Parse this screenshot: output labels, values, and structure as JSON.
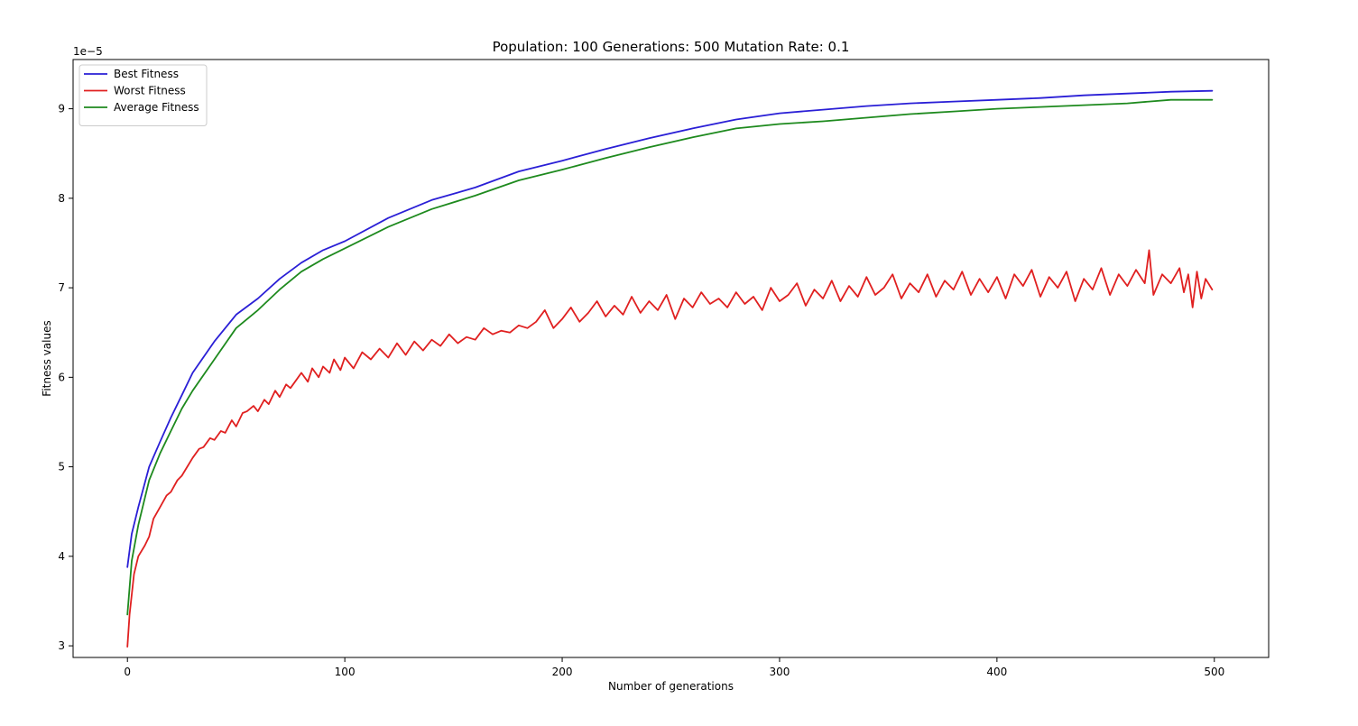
{
  "chart_data": {
    "type": "line",
    "title": "Population: 100 Generations: 500 Mutation Rate: 0.1",
    "xlabel": "Number of generations",
    "ylabel": "Fitness values",
    "y_offset_label": "1e−5",
    "xlim": [
      -25,
      525
    ],
    "ylim": [
      2.87,
      9.55
    ],
    "xticks": [
      0,
      100,
      200,
      300,
      400,
      500
    ],
    "xtick_labels": [
      "0",
      "100",
      "200",
      "300",
      "400",
      "500"
    ],
    "yticks": [
      3,
      4,
      5,
      6,
      7,
      8,
      9
    ],
    "ytick_labels": [
      "3",
      "4",
      "5",
      "6",
      "7",
      "8",
      "9"
    ],
    "grid": false,
    "legend_placement": "top-left",
    "series": [
      {
        "name": "Best Fitness",
        "color": "#2a1fd6",
        "x": [
          0,
          2,
          5,
          10,
          15,
          20,
          25,
          30,
          40,
          50,
          60,
          70,
          80,
          90,
          100,
          120,
          140,
          160,
          180,
          200,
          220,
          240,
          260,
          280,
          300,
          320,
          340,
          360,
          380,
          400,
          420,
          440,
          460,
          480,
          499
        ],
        "values": [
          3.88,
          4.25,
          4.55,
          5.0,
          5.28,
          5.55,
          5.8,
          6.05,
          6.4,
          6.7,
          6.88,
          7.1,
          7.28,
          7.42,
          7.52,
          7.78,
          7.98,
          8.12,
          8.3,
          8.42,
          8.55,
          8.67,
          8.78,
          8.88,
          8.95,
          8.99,
          9.03,
          9.06,
          9.08,
          9.1,
          9.12,
          9.15,
          9.17,
          9.19,
          9.2
        ]
      },
      {
        "name": "Worst Fitness",
        "color": "#e02020",
        "x": [
          0,
          1,
          3,
          5,
          8,
          10,
          12,
          15,
          18,
          20,
          23,
          25,
          28,
          30,
          33,
          35,
          38,
          40,
          43,
          45,
          48,
          50,
          53,
          55,
          58,
          60,
          63,
          65,
          68,
          70,
          73,
          75,
          78,
          80,
          83,
          85,
          88,
          90,
          93,
          95,
          98,
          100,
          104,
          108,
          112,
          116,
          120,
          124,
          128,
          132,
          136,
          140,
          144,
          148,
          152,
          156,
          160,
          164,
          168,
          172,
          176,
          180,
          184,
          188,
          192,
          196,
          200,
          204,
          208,
          212,
          216,
          220,
          224,
          228,
          232,
          236,
          240,
          244,
          248,
          252,
          256,
          260,
          264,
          268,
          272,
          276,
          280,
          284,
          288,
          292,
          296,
          300,
          304,
          308,
          312,
          316,
          320,
          324,
          328,
          332,
          336,
          340,
          344,
          348,
          352,
          356,
          360,
          364,
          368,
          372,
          376,
          380,
          384,
          388,
          392,
          396,
          400,
          404,
          408,
          412,
          416,
          420,
          424,
          428,
          432,
          436,
          440,
          444,
          448,
          452,
          456,
          460,
          464,
          468,
          470,
          472,
          476,
          480,
          484,
          486,
          488,
          490,
          492,
          494,
          496,
          499
        ],
        "values": [
          2.99,
          3.35,
          3.8,
          4.0,
          4.12,
          4.22,
          4.42,
          4.55,
          4.68,
          4.72,
          4.85,
          4.9,
          5.02,
          5.1,
          5.2,
          5.22,
          5.32,
          5.3,
          5.4,
          5.38,
          5.52,
          5.45,
          5.6,
          5.62,
          5.68,
          5.62,
          5.75,
          5.7,
          5.85,
          5.78,
          5.92,
          5.88,
          5.98,
          6.05,
          5.95,
          6.1,
          6.0,
          6.12,
          6.05,
          6.2,
          6.08,
          6.22,
          6.1,
          6.28,
          6.2,
          6.32,
          6.22,
          6.38,
          6.25,
          6.4,
          6.3,
          6.42,
          6.35,
          6.48,
          6.38,
          6.45,
          6.42,
          6.55,
          6.48,
          6.52,
          6.5,
          6.58,
          6.55,
          6.62,
          6.75,
          6.55,
          6.65,
          6.78,
          6.62,
          6.72,
          6.85,
          6.68,
          6.8,
          6.7,
          6.9,
          6.72,
          6.85,
          6.75,
          6.92,
          6.65,
          6.88,
          6.78,
          6.95,
          6.82,
          6.88,
          6.78,
          6.95,
          6.82,
          6.9,
          6.75,
          7.0,
          6.85,
          6.92,
          7.05,
          6.8,
          6.98,
          6.88,
          7.08,
          6.85,
          7.02,
          6.9,
          7.12,
          6.92,
          7.0,
          7.15,
          6.88,
          7.05,
          6.95,
          7.15,
          6.9,
          7.08,
          6.98,
          7.18,
          6.92,
          7.1,
          6.95,
          7.12,
          6.88,
          7.15,
          7.02,
          7.2,
          6.9,
          7.12,
          7.0,
          7.18,
          6.85,
          7.1,
          6.98,
          7.22,
          6.92,
          7.15,
          7.02,
          7.2,
          7.05,
          7.42,
          6.92,
          7.15,
          7.05,
          7.22,
          6.95,
          7.15,
          6.78,
          7.18,
          6.88,
          7.1,
          6.98
        ]
      },
      {
        "name": "Average Fitness",
        "color": "#1e8a1e",
        "x": [
          0,
          2,
          5,
          10,
          15,
          20,
          25,
          30,
          40,
          50,
          60,
          70,
          80,
          90,
          100,
          120,
          140,
          160,
          180,
          200,
          220,
          240,
          260,
          280,
          300,
          320,
          340,
          360,
          380,
          400,
          420,
          440,
          460,
          470,
          480,
          490,
          499
        ],
        "values": [
          3.35,
          3.95,
          4.35,
          4.85,
          5.15,
          5.4,
          5.65,
          5.85,
          6.2,
          6.55,
          6.75,
          6.98,
          7.18,
          7.32,
          7.44,
          7.68,
          7.88,
          8.03,
          8.2,
          8.32,
          8.45,
          8.57,
          8.68,
          8.78,
          8.83,
          8.86,
          8.9,
          8.94,
          8.97,
          9.0,
          9.02,
          9.04,
          9.06,
          9.08,
          9.1,
          9.1,
          9.1
        ]
      }
    ]
  }
}
